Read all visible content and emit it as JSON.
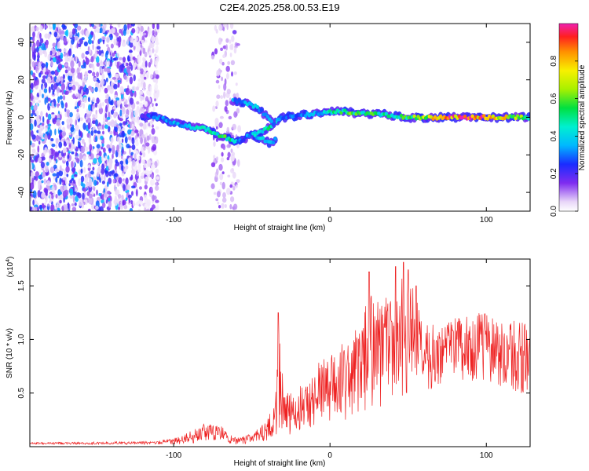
{
  "chart_data": [
    {
      "type": "heatmap",
      "title": "C2E4.2025.258.00.53.E19",
      "xlabel": "Height of straight line (km)",
      "ylabel": "Frequency (Hz)",
      "xlim": [
        -192,
        128
      ],
      "ylim": [
        -50,
        50
      ],
      "xticks": [
        -100,
        0,
        100
      ],
      "yticks": [
        -40,
        -20,
        0,
        20,
        40
      ],
      "colorbar": {
        "label": "Normalized spectral amplitude",
        "range": [
          0,
          1
        ],
        "ticks": [
          0.0,
          0.2,
          0.4,
          0.6,
          0.8
        ]
      },
      "noise_regions_km": [
        [
          -192,
          -110
        ],
        [
          -75,
          -58
        ]
      ],
      "ridge": [
        [
          -120,
          1
        ],
        [
          -110,
          0
        ],
        [
          -100,
          -3
        ],
        [
          -90,
          -5
        ],
        [
          -80,
          -6
        ],
        [
          -72,
          -9
        ],
        [
          -64,
          -12
        ],
        [
          -58,
          -13
        ],
        [
          -52,
          -10
        ],
        [
          -40,
          -6
        ],
        [
          -34,
          -2
        ],
        [
          -30,
          0
        ],
        [
          -20,
          1
        ],
        [
          -10,
          2
        ],
        [
          0,
          3
        ],
        [
          10,
          3
        ],
        [
          20,
          2
        ],
        [
          30,
          2
        ],
        [
          40,
          1
        ],
        [
          50,
          0
        ],
        [
          60,
          0
        ],
        [
          80,
          0
        ],
        [
          100,
          0
        ],
        [
          128,
          0
        ]
      ],
      "ridge_strength": [
        0.2,
        0.3,
        0.35,
        0.4,
        0.5,
        0.45,
        0.55,
        0.3,
        0.3,
        0.55,
        0.4,
        0.25,
        0.3,
        0.35,
        0.45,
        0.55,
        0.55,
        0.5,
        0.45,
        0.55,
        0.65,
        0.9,
        0.85,
        0.5
      ],
      "branch_upper": [
        [
          -62,
          9
        ],
        [
          -54,
          8
        ],
        [
          -46,
          5
        ],
        [
          -40,
          0
        ],
        [
          -36,
          -4
        ]
      ],
      "branch_lower": [
        [
          -48,
          -10
        ],
        [
          -42,
          -12
        ],
        [
          -38,
          -14
        ],
        [
          -34,
          -11
        ]
      ]
    },
    {
      "type": "line",
      "xlabel": "Height of straight line (km)",
      "ylabel": "SNR (10 * v/v)",
      "scale_label": "(x10",
      "scale_exponent": "4",
      "scale_suffix": ")",
      "xlim": [
        -192,
        128
      ],
      "ylim": [
        0,
        1.75
      ],
      "xticks": [
        -100,
        0,
        100
      ],
      "yticks": [
        0.5,
        1.0,
        1.5
      ],
      "yticklabels": [
        "0.5",
        "1.0",
        "1.5"
      ],
      "series": [
        {
          "name": "SNR",
          "color": "#ee2222",
          "envelope_x": [
            -192,
            -110,
            -95,
            -80,
            -70,
            -60,
            -50,
            -40,
            -35,
            -33,
            -30,
            -25,
            -20,
            -10,
            -5,
            0,
            10,
            20,
            25,
            30,
            40,
            45,
            50,
            55,
            60,
            70,
            80,
            90,
            100,
            110,
            120,
            128
          ],
          "envelope_y": [
            0.04,
            0.05,
            0.1,
            0.22,
            0.2,
            0.08,
            0.12,
            0.25,
            0.45,
            1.25,
            0.6,
            0.5,
            0.55,
            0.7,
            0.9,
            0.85,
            1.0,
            1.2,
            1.4,
            1.45,
            1.35,
            1.55,
            1.7,
            1.4,
            1.2,
            1.15,
            1.2,
            1.25,
            1.25,
            1.2,
            1.2,
            1.15
          ],
          "baseline_y": [
            0.02,
            0.02,
            0.02,
            0.04,
            0.04,
            0.02,
            0.03,
            0.05,
            0.08,
            0.15,
            0.1,
            0.1,
            0.12,
            0.15,
            0.2,
            0.2,
            0.25,
            0.3,
            0.35,
            0.35,
            0.4,
            0.45,
            0.45,
            0.5,
            0.5,
            0.55,
            0.6,
            0.6,
            0.6,
            0.55,
            0.5,
            0.5
          ],
          "peaks": [
            [
              -33,
              1.25
            ],
            [
              25,
              1.63
            ],
            [
              42,
              1.68
            ],
            [
              47,
              1.72
            ],
            [
              50,
              1.65
            ],
            [
              55,
              1.5
            ]
          ]
        }
      ]
    }
  ]
}
